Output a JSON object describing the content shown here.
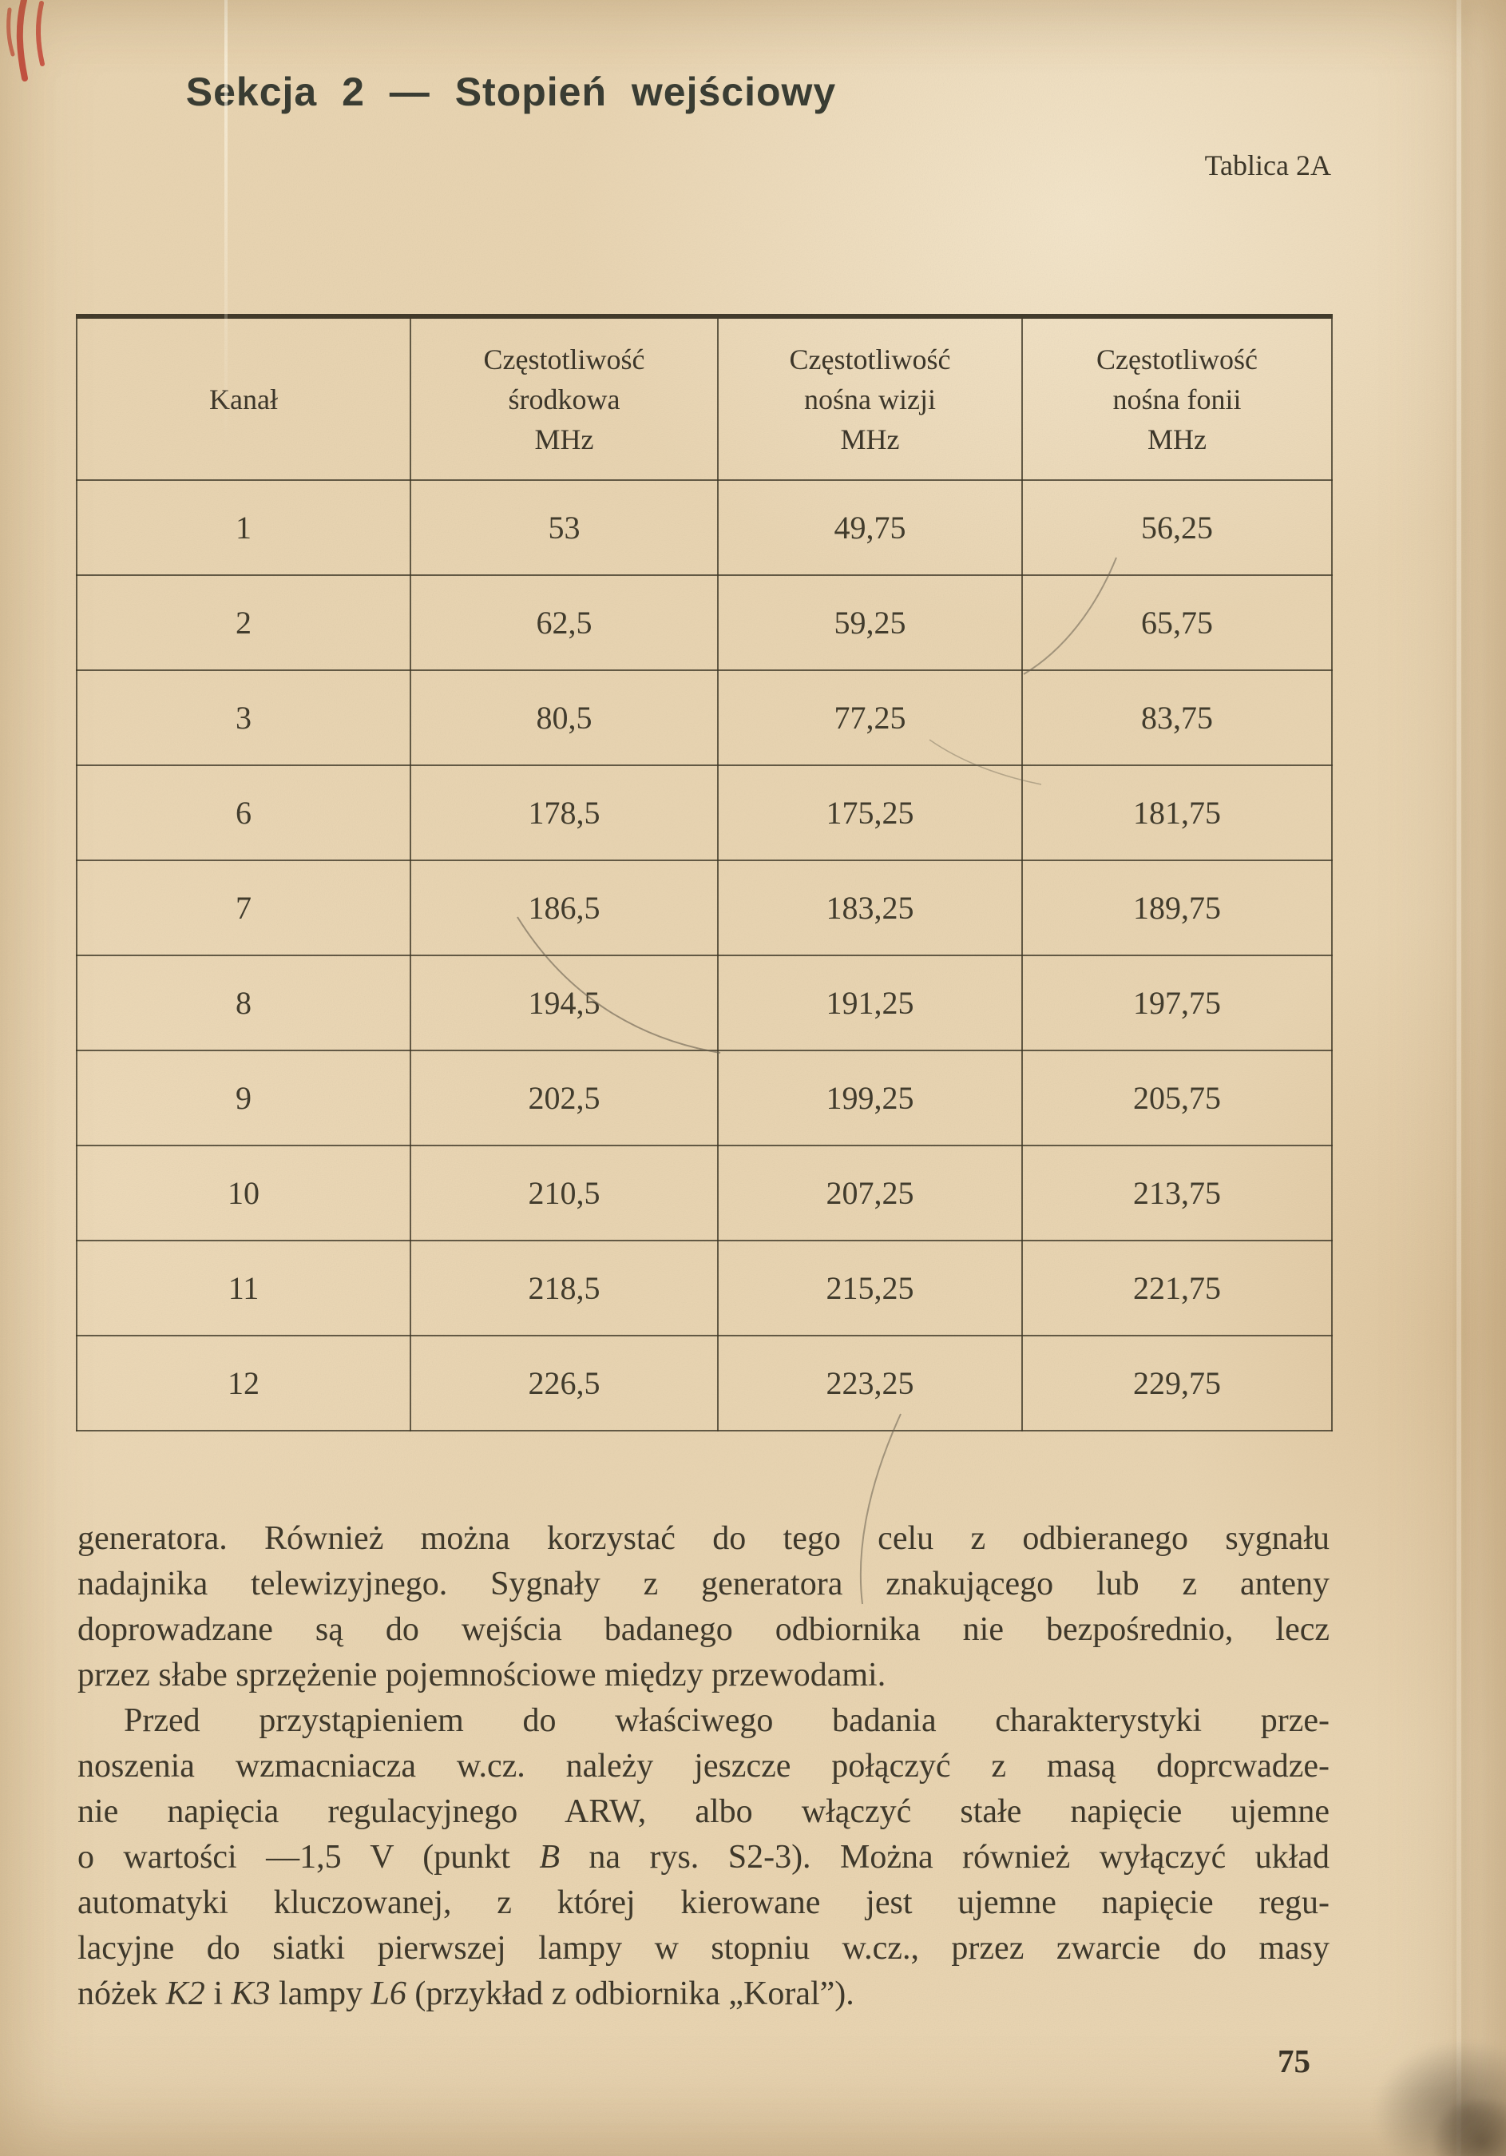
{
  "page": {
    "title": "Sekcja 2 — Stopień wejściowy",
    "table_label": "Tablica 2A",
    "page_number": "75"
  },
  "table": {
    "columns": [
      {
        "lines": [
          "Kanał"
        ]
      },
      {
        "lines": [
          "Częstotliwość",
          "środkowa",
          "MHz"
        ]
      },
      {
        "lines": [
          "Częstotliwość",
          "nośna wizji",
          "MHz"
        ]
      },
      {
        "lines": [
          "Częstotliwość",
          "nośna fonii",
          "MHz"
        ]
      }
    ],
    "rows": [
      [
        "1",
        "53",
        "49,75",
        "56,25"
      ],
      [
        "2",
        "62,5",
        "59,25",
        "65,75"
      ],
      [
        "3",
        "80,5",
        "77,25",
        "83,75"
      ],
      [
        "6",
        "178,5",
        "175,25",
        "181,75"
      ],
      [
        "7",
        "186,5",
        "183,25",
        "189,75"
      ],
      [
        "8",
        "194,5",
        "191,25",
        "197,75"
      ],
      [
        "9",
        "202,5",
        "199,25",
        "205,75"
      ],
      [
        "10",
        "210,5",
        "207,25",
        "213,75"
      ],
      [
        "11",
        "218,5",
        "215,25",
        "221,75"
      ],
      [
        "12",
        "226,5",
        "223,25",
        "229,75"
      ]
    ]
  },
  "paragraphs": [
    {
      "indent": false,
      "lines": [
        [
          {
            "t": "generatora. Również można korzystać do tego celu z odbieranego sygnału"
          }
        ],
        [
          {
            "t": "nadajnika telewizyjnego. Sygnały z generatora znakującego lub z anteny"
          }
        ],
        [
          {
            "t": "doprowadzane są do wejścia badanego odbiornika nie bezpośrednio, lecz"
          }
        ],
        [
          {
            "t": "przez słabe sprzężenie pojemnościowe między przewodami."
          }
        ]
      ]
    },
    {
      "indent": true,
      "lines": [
        [
          {
            "t": "Przed przystąpieniem do właściwego badania charakterystyki prze-"
          }
        ],
        [
          {
            "t": "noszenia wzmacniacza w.cz. należy jeszcze połączyć z masą doprcwadze-"
          }
        ],
        [
          {
            "t": "nie napięcia regulacyjnego ARW, albo włączyć stałe napięcie ujemne"
          }
        ],
        [
          {
            "t": "o wartości —1,5 V (punkt "
          },
          {
            "t": "B",
            "i": true
          },
          {
            "t": " na rys. S2-3). Można również wyłączyć układ"
          }
        ],
        [
          {
            "t": "automatyki kluczowanej, z której kierowane jest ujemne napięcie regu-"
          }
        ],
        [
          {
            "t": "lacyjne do siatki pierwszej lampy w stopniu w.cz., przez zwarcie do masy"
          }
        ],
        [
          {
            "t": "nóżek "
          },
          {
            "t": "K2",
            "i": true
          },
          {
            "t": " i "
          },
          {
            "t": "K3",
            "i": true
          },
          {
            "t": " lampy "
          },
          {
            "t": "L6",
            "i": true
          },
          {
            "t": " (przykład z odbiornika „Koral”)."
          }
        ]
      ]
    }
  ]
}
